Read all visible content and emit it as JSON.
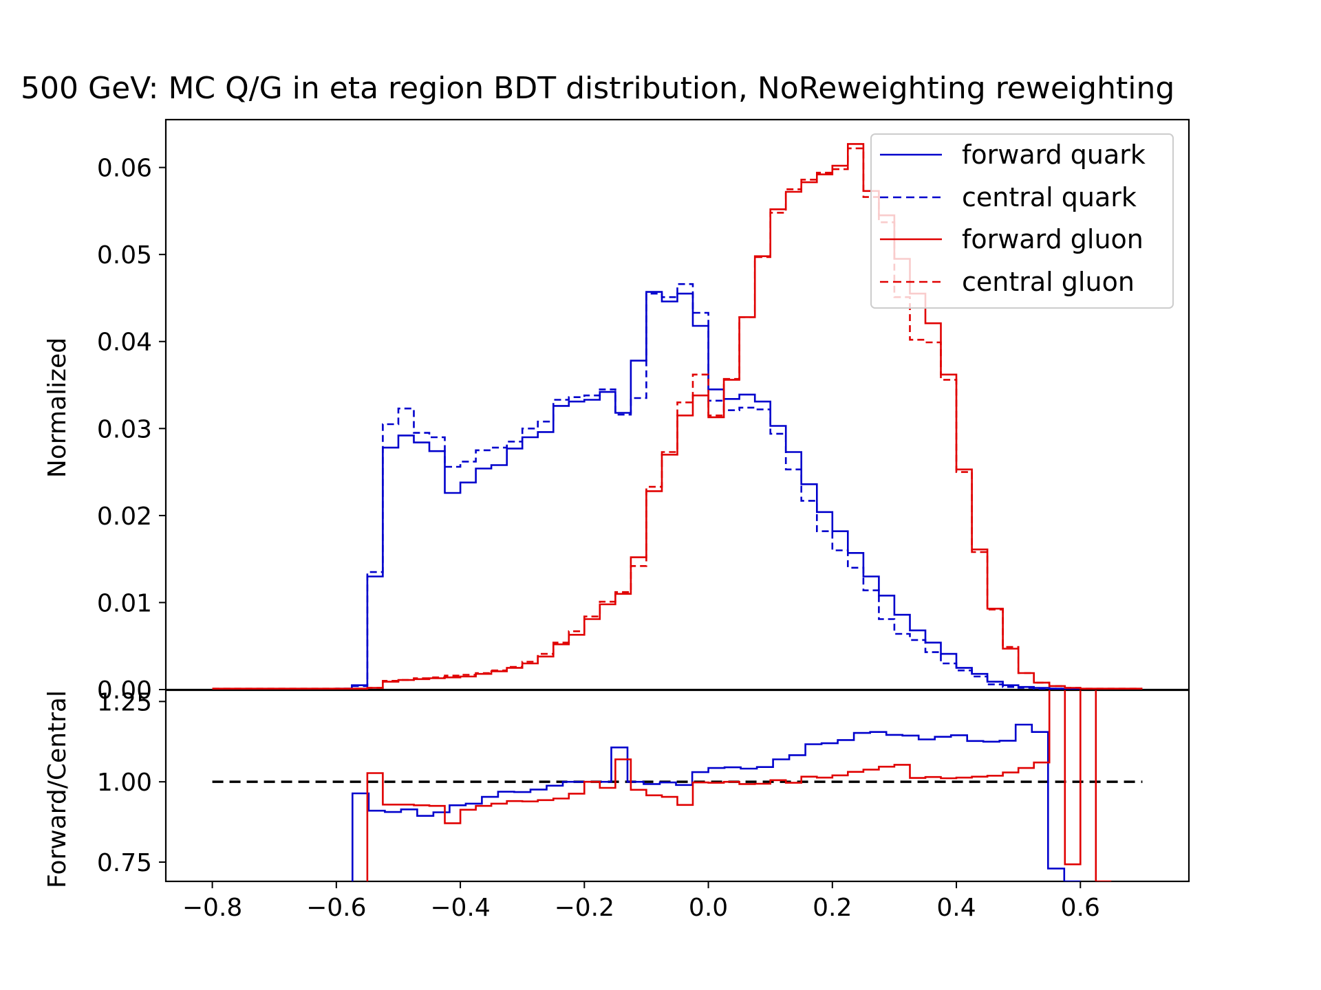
{
  "chart_data": {
    "type": "line",
    "title": "500 GeV: MC Q/G in eta region BDT distribution, NoReweighting reweighting",
    "xlim": [
      -0.875,
      0.775
    ],
    "grid": false,
    "legend": {
      "placement": "top-right",
      "entries": [
        {
          "label": "forward quark",
          "color": "#0000cc",
          "style": "solid"
        },
        {
          "label": "central quark",
          "color": "#0000cc",
          "style": "dashed"
        },
        {
          "label": "forward gluon",
          "color": "#e00000",
          "style": "solid"
        },
        {
          "label": "central gluon",
          "color": "#e00000",
          "style": "dashed"
        }
      ]
    },
    "x_ticks": [
      -0.8,
      -0.6,
      -0.4,
      -0.2,
      0.0,
      0.2,
      0.4,
      0.6
    ],
    "x_tick_labels": [
      "−0.8",
      "−0.6",
      "−0.4",
      "−0.2",
      "0.0",
      "0.2",
      "0.4",
      "0.6"
    ],
    "bin_edges": [
      -0.8,
      -0.775,
      -0.75,
      -0.725,
      -0.7,
      -0.675,
      -0.65,
      -0.625,
      -0.6,
      -0.575,
      -0.55,
      -0.525,
      -0.5,
      -0.475,
      -0.45,
      -0.425,
      -0.4,
      -0.375,
      -0.35,
      -0.325,
      -0.3,
      -0.275,
      -0.25,
      -0.225,
      -0.2,
      -0.175,
      -0.15,
      -0.125,
      -0.1,
      -0.075,
      -0.05,
      -0.025,
      0.0,
      0.025,
      0.05,
      0.075,
      0.1,
      0.125,
      0.15,
      0.175,
      0.2,
      0.225,
      0.25,
      0.275,
      0.3,
      0.325,
      0.35,
      0.375,
      0.4,
      0.425,
      0.45,
      0.475,
      0.5,
      0.525,
      0.55,
      0.575,
      0.6,
      0.625,
      0.65,
      0.675,
      0.7
    ],
    "top_panel": {
      "ylabel": "Normalized",
      "ylim": [
        0,
        0.0655
      ],
      "y_ticks": [
        0.0,
        0.01,
        0.02,
        0.03,
        0.04,
        0.05,
        0.06
      ],
      "y_tick_labels": [
        "0.00",
        "0.01",
        "0.02",
        "0.03",
        "0.04",
        "0.05",
        "0.06"
      ],
      "series": [
        {
          "name": "forward quark",
          "color": "#0000cc",
          "style": "solid",
          "values": [
            0,
            0,
            0,
            0,
            0,
            0,
            0,
            0,
            0.0001,
            0.0005,
            0.013,
            0.0278,
            0.0292,
            0.0284,
            0.0274,
            0.0226,
            0.0238,
            0.0254,
            0.0258,
            0.0277,
            0.029,
            0.0296,
            0.0326,
            0.0331,
            0.0333,
            0.0342,
            0.0318,
            0.0378,
            0.0457,
            0.0446,
            0.0455,
            0.0418,
            0.0345,
            0.0334,
            0.0339,
            0.0331,
            0.0303,
            0.0273,
            0.0236,
            0.0204,
            0.0182,
            0.0157,
            0.013,
            0.0108,
            0.0086,
            0.0068,
            0.0054,
            0.0041,
            0.0025,
            0.0018,
            0.0009,
            0.0005,
            0.0003,
            0.0002,
            0.0001,
            0.0001,
            5e-05,
            0,
            0,
            0
          ]
        },
        {
          "name": "central quark",
          "color": "#0000cc",
          "style": "dashed",
          "values": [
            0,
            0,
            0,
            0,
            0,
            0,
            0,
            0,
            0.0001,
            0.0004,
            0.0135,
            0.0305,
            0.0323,
            0.0295,
            0.029,
            0.0256,
            0.0262,
            0.0275,
            0.0278,
            0.0285,
            0.03,
            0.0308,
            0.0333,
            0.0336,
            0.0338,
            0.0345,
            0.0316,
            0.0335,
            0.0455,
            0.0451,
            0.0466,
            0.0433,
            0.0332,
            0.0321,
            0.0324,
            0.0322,
            0.0294,
            0.0253,
            0.0217,
            0.0182,
            0.016,
            0.014,
            0.0114,
            0.0081,
            0.0064,
            0.0057,
            0.0043,
            0.003,
            0.0022,
            0.0015,
            0.0006,
            0.0003,
            0.0002,
            0.0001,
            0.0001,
            0.0001,
            5e-05,
            0,
            0,
            0
          ]
        },
        {
          "name": "forward gluon",
          "color": "#e00000",
          "style": "solid",
          "values": [
            0.0001,
            0.0001,
            0.0001,
            0.0001,
            0.0001,
            0.0001,
            0.0001,
            0.0001,
            0.0001,
            0.0001,
            0.0002,
            0.0009,
            0.0011,
            0.0012,
            0.0013,
            0.0014,
            0.0015,
            0.0018,
            0.0021,
            0.0025,
            0.003,
            0.0038,
            0.0052,
            0.0063,
            0.0081,
            0.0098,
            0.011,
            0.0152,
            0.0228,
            0.027,
            0.0315,
            0.0338,
            0.0313,
            0.0356,
            0.0428,
            0.0498,
            0.0552,
            0.0572,
            0.0583,
            0.0592,
            0.0602,
            0.0627,
            0.0573,
            0.0545,
            0.0495,
            0.0455,
            0.0421,
            0.0362,
            0.0253,
            0.0161,
            0.0093,
            0.0047,
            0.0019,
            0.0008,
            0.0004,
            0.0002,
            0.0001,
            0.0001,
            0.0001,
            0.0001
          ]
        },
        {
          "name": "central gluon",
          "color": "#e00000",
          "style": "dashed",
          "values": [
            0.0001,
            0.0001,
            0.0001,
            0.0001,
            0.0001,
            0.0001,
            0.0001,
            0.0001,
            0.0001,
            0.0001,
            0.0002,
            0.001,
            0.0011,
            0.0013,
            0.0014,
            0.0016,
            0.0017,
            0.0019,
            0.0022,
            0.0026,
            0.0032,
            0.0041,
            0.0054,
            0.0067,
            0.0084,
            0.0101,
            0.0112,
            0.0142,
            0.0233,
            0.0273,
            0.033,
            0.0362,
            0.0315,
            0.0357,
            0.0428,
            0.0497,
            0.0548,
            0.0575,
            0.0586,
            0.0594,
            0.0598,
            0.0622,
            0.0566,
            0.0537,
            0.0451,
            0.0402,
            0.0399,
            0.0356,
            0.025,
            0.0158,
            0.0092,
            0.0049,
            0.0019,
            0.0008,
            0.0004,
            0.0002,
            0.0001,
            0.0001,
            0.0001,
            0.0001
          ]
        }
      ]
    },
    "ratio_panel": {
      "ylabel": "Forward/Central",
      "ylim": [
        0.69,
        1.285
      ],
      "y_ticks": [
        0.75,
        1.0,
        1.25
      ],
      "y_tick_labels": [
        "0.75",
        "1.00",
        "1.25"
      ],
      "reference_line": {
        "y": 1.0,
        "color": "#000000",
        "style": "dashed",
        "x_range": [
          -0.8,
          0.7
        ]
      },
      "series": [
        {
          "name": "quark ratio",
          "color": "#0000cc",
          "style": "solid",
          "x_start": -0.6,
          "x_end": 0.6,
          "values": [
            0.53,
            0.964,
            0.91,
            0.906,
            0.914,
            0.894,
            0.905,
            0.927,
            0.932,
            0.953,
            0.969,
            0.968,
            0.976,
            0.988,
            1.0,
            1.0,
            1.0,
            1.107,
            1.0,
            0.993,
            0.998,
            0.99,
            1.03,
            1.043,
            1.045,
            1.041,
            1.046,
            1.07,
            1.083,
            1.117,
            1.12,
            1.13,
            1.152,
            1.155,
            1.146,
            1.144,
            1.132,
            1.14,
            1.145,
            1.127,
            1.125,
            1.128,
            1.178,
            1.155,
            0.73,
            0.69
          ]
        },
        {
          "name": "gluon ratio",
          "color": "#e00000",
          "style": "solid",
          "x_start": -0.575,
          "x_end": 0.65,
          "values": [
            0.53,
            1.027,
            0.929,
            0.929,
            0.927,
            0.925,
            0.871,
            0.913,
            0.925,
            0.932,
            0.94,
            0.939,
            0.943,
            0.948,
            0.963,
            1.0,
            0.981,
            1.07,
            0.975,
            0.958,
            0.953,
            0.928,
            0.998,
            0.997,
            1.0,
            0.993,
            0.994,
            1.005,
            0.997,
            1.016,
            1.013,
            1.02,
            1.031,
            1.038,
            1.047,
            1.053,
            1.012,
            1.015,
            1.011,
            1.013,
            1.016,
            1.019,
            1.029,
            1.043,
            1.06,
            1.35,
            0.743,
            1.35,
            0.69
          ]
        }
      ]
    }
  }
}
